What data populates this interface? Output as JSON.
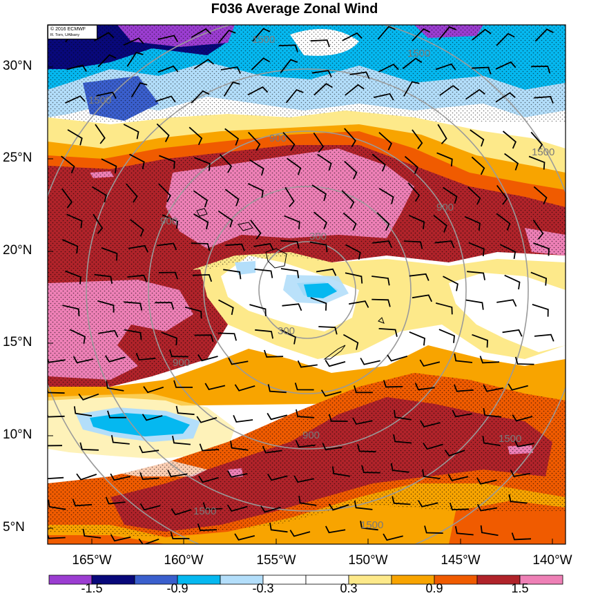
{
  "title": "F036 Average Zonal Wind",
  "credit": {
    "line1": "© 2016 ECMWF",
    "line2": "R. Torn, UAlbany"
  },
  "lat_labels": [
    "30°N",
    "25°N",
    "20°N",
    "15°N",
    "10°N",
    "5°N"
  ],
  "lon_labels": [
    "165°W",
    "160°W",
    "155°W",
    "150°W",
    "145°W",
    "140°W"
  ],
  "contour_labels": [
    "300",
    "300",
    "900",
    "900",
    "900",
    "900",
    "900",
    "1500",
    "1500",
    "1500",
    "1500",
    "1500",
    "1500",
    "1500"
  ],
  "colorbar": {
    "colors": [
      "#9b3dd1",
      "#08087a",
      "#3a5fcd",
      "#05b8f0",
      "#b3defa",
      "#ffffff",
      "#ffffff",
      "#fde98a",
      "#f8a400",
      "#f05b00",
      "#b0232a",
      "#ee80b6"
    ],
    "tick_labels": [
      "-1.5",
      "-0.9",
      "-0.3",
      "0.3",
      "0.9",
      "1.5"
    ]
  },
  "fill_colors": {
    "pink": "#ee80b6",
    "darkred": "#b0232a",
    "orange": "#f05b00",
    "amber": "#f8a400",
    "yellow": "#fde98a",
    "white": "#ffffff",
    "lightblue": "#b3defa",
    "cyan": "#05b8f0",
    "blue": "#3a5fcd",
    "navy": "#08087a",
    "purple": "#9b3dd1"
  }
}
